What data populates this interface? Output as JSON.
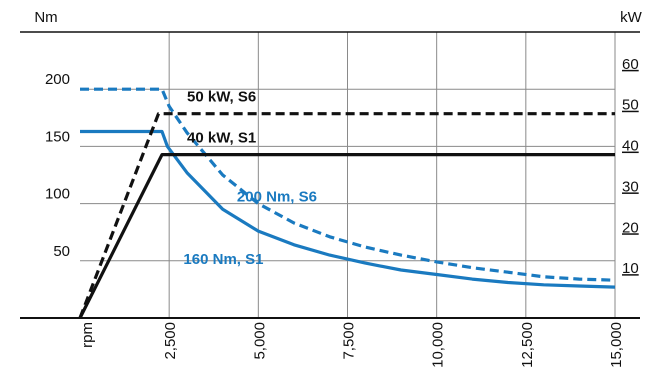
{
  "chart_data": {
    "type": "line",
    "title": "",
    "xlabel": "rpm",
    "ylabel_left": "Nm",
    "ylabel_right": "kW",
    "x_ticks": [
      "2,500",
      "5,000",
      "7,500",
      "10,000",
      "12,500",
      "15,000"
    ],
    "x_tick_values": [
      2500,
      5000,
      7500,
      10000,
      12500,
      15000
    ],
    "xlim": [
      0,
      15000
    ],
    "y_left_ticks": [
      "50",
      "100",
      "150",
      "200"
    ],
    "y_left_tick_values": [
      50,
      100,
      150,
      200
    ],
    "ylim_left": [
      0,
      250
    ],
    "y_right_ticks": [
      "10",
      "20",
      "30",
      "40",
      "50",
      "60"
    ],
    "y_right_tick_values": [
      10,
      20,
      30,
      40,
      50,
      60
    ],
    "ylim_right": [
      0,
      70
    ],
    "grid": true,
    "series": [
      {
        "name": "200 Nm, S6",
        "axis": "left",
        "color": "#1a7ac0",
        "dash": true,
        "x": [
          0,
          2300,
          2500,
          3000,
          4000,
          5000,
          6000,
          7000,
          8000,
          9000,
          10000,
          11000,
          12000,
          13000,
          14000,
          15000
        ],
        "y": [
          200,
          200,
          185,
          162,
          125,
          100,
          83,
          71,
          62,
          55,
          49,
          44,
          40,
          36,
          34,
          33
        ]
      },
      {
        "name": "160 Nm, S1",
        "axis": "left",
        "color": "#1a7ac0",
        "dash": false,
        "x": [
          0,
          2300,
          2450,
          3000,
          4000,
          5000,
          6000,
          7000,
          8000,
          9000,
          10000,
          11000,
          12000,
          13000,
          14000,
          15000
        ],
        "y": [
          163,
          163,
          150,
          127,
          95,
          76,
          64,
          55,
          48,
          42,
          38,
          34,
          31,
          29,
          28,
          27
        ]
      },
      {
        "name": "50 kW, S6",
        "axis": "right",
        "color": "#111111",
        "dash": true,
        "x": [
          0,
          2200,
          15000
        ],
        "y": [
          0,
          50,
          50
        ]
      },
      {
        "name": "40 kW, S1",
        "axis": "right",
        "color": "#111111",
        "dash": false,
        "x": [
          0,
          2300,
          15000
        ],
        "y": [
          0,
          40,
          40
        ]
      }
    ],
    "annotations": [
      {
        "text": "50 kW,  S6",
        "color": "#111111",
        "x": 3000,
        "axis": "right",
        "y": 53
      },
      {
        "text": "40 kW,  S1",
        "color": "#111111",
        "x": 3000,
        "axis": "right",
        "y": 43
      },
      {
        "text": "200 Nm,  S6",
        "color": "#1a7ac0",
        "x": 4400,
        "axis": "left",
        "y": 102
      },
      {
        "text": "160 Nm,  S1",
        "color": "#1a7ac0",
        "x": 2900,
        "axis": "left",
        "y": 47
      }
    ]
  }
}
